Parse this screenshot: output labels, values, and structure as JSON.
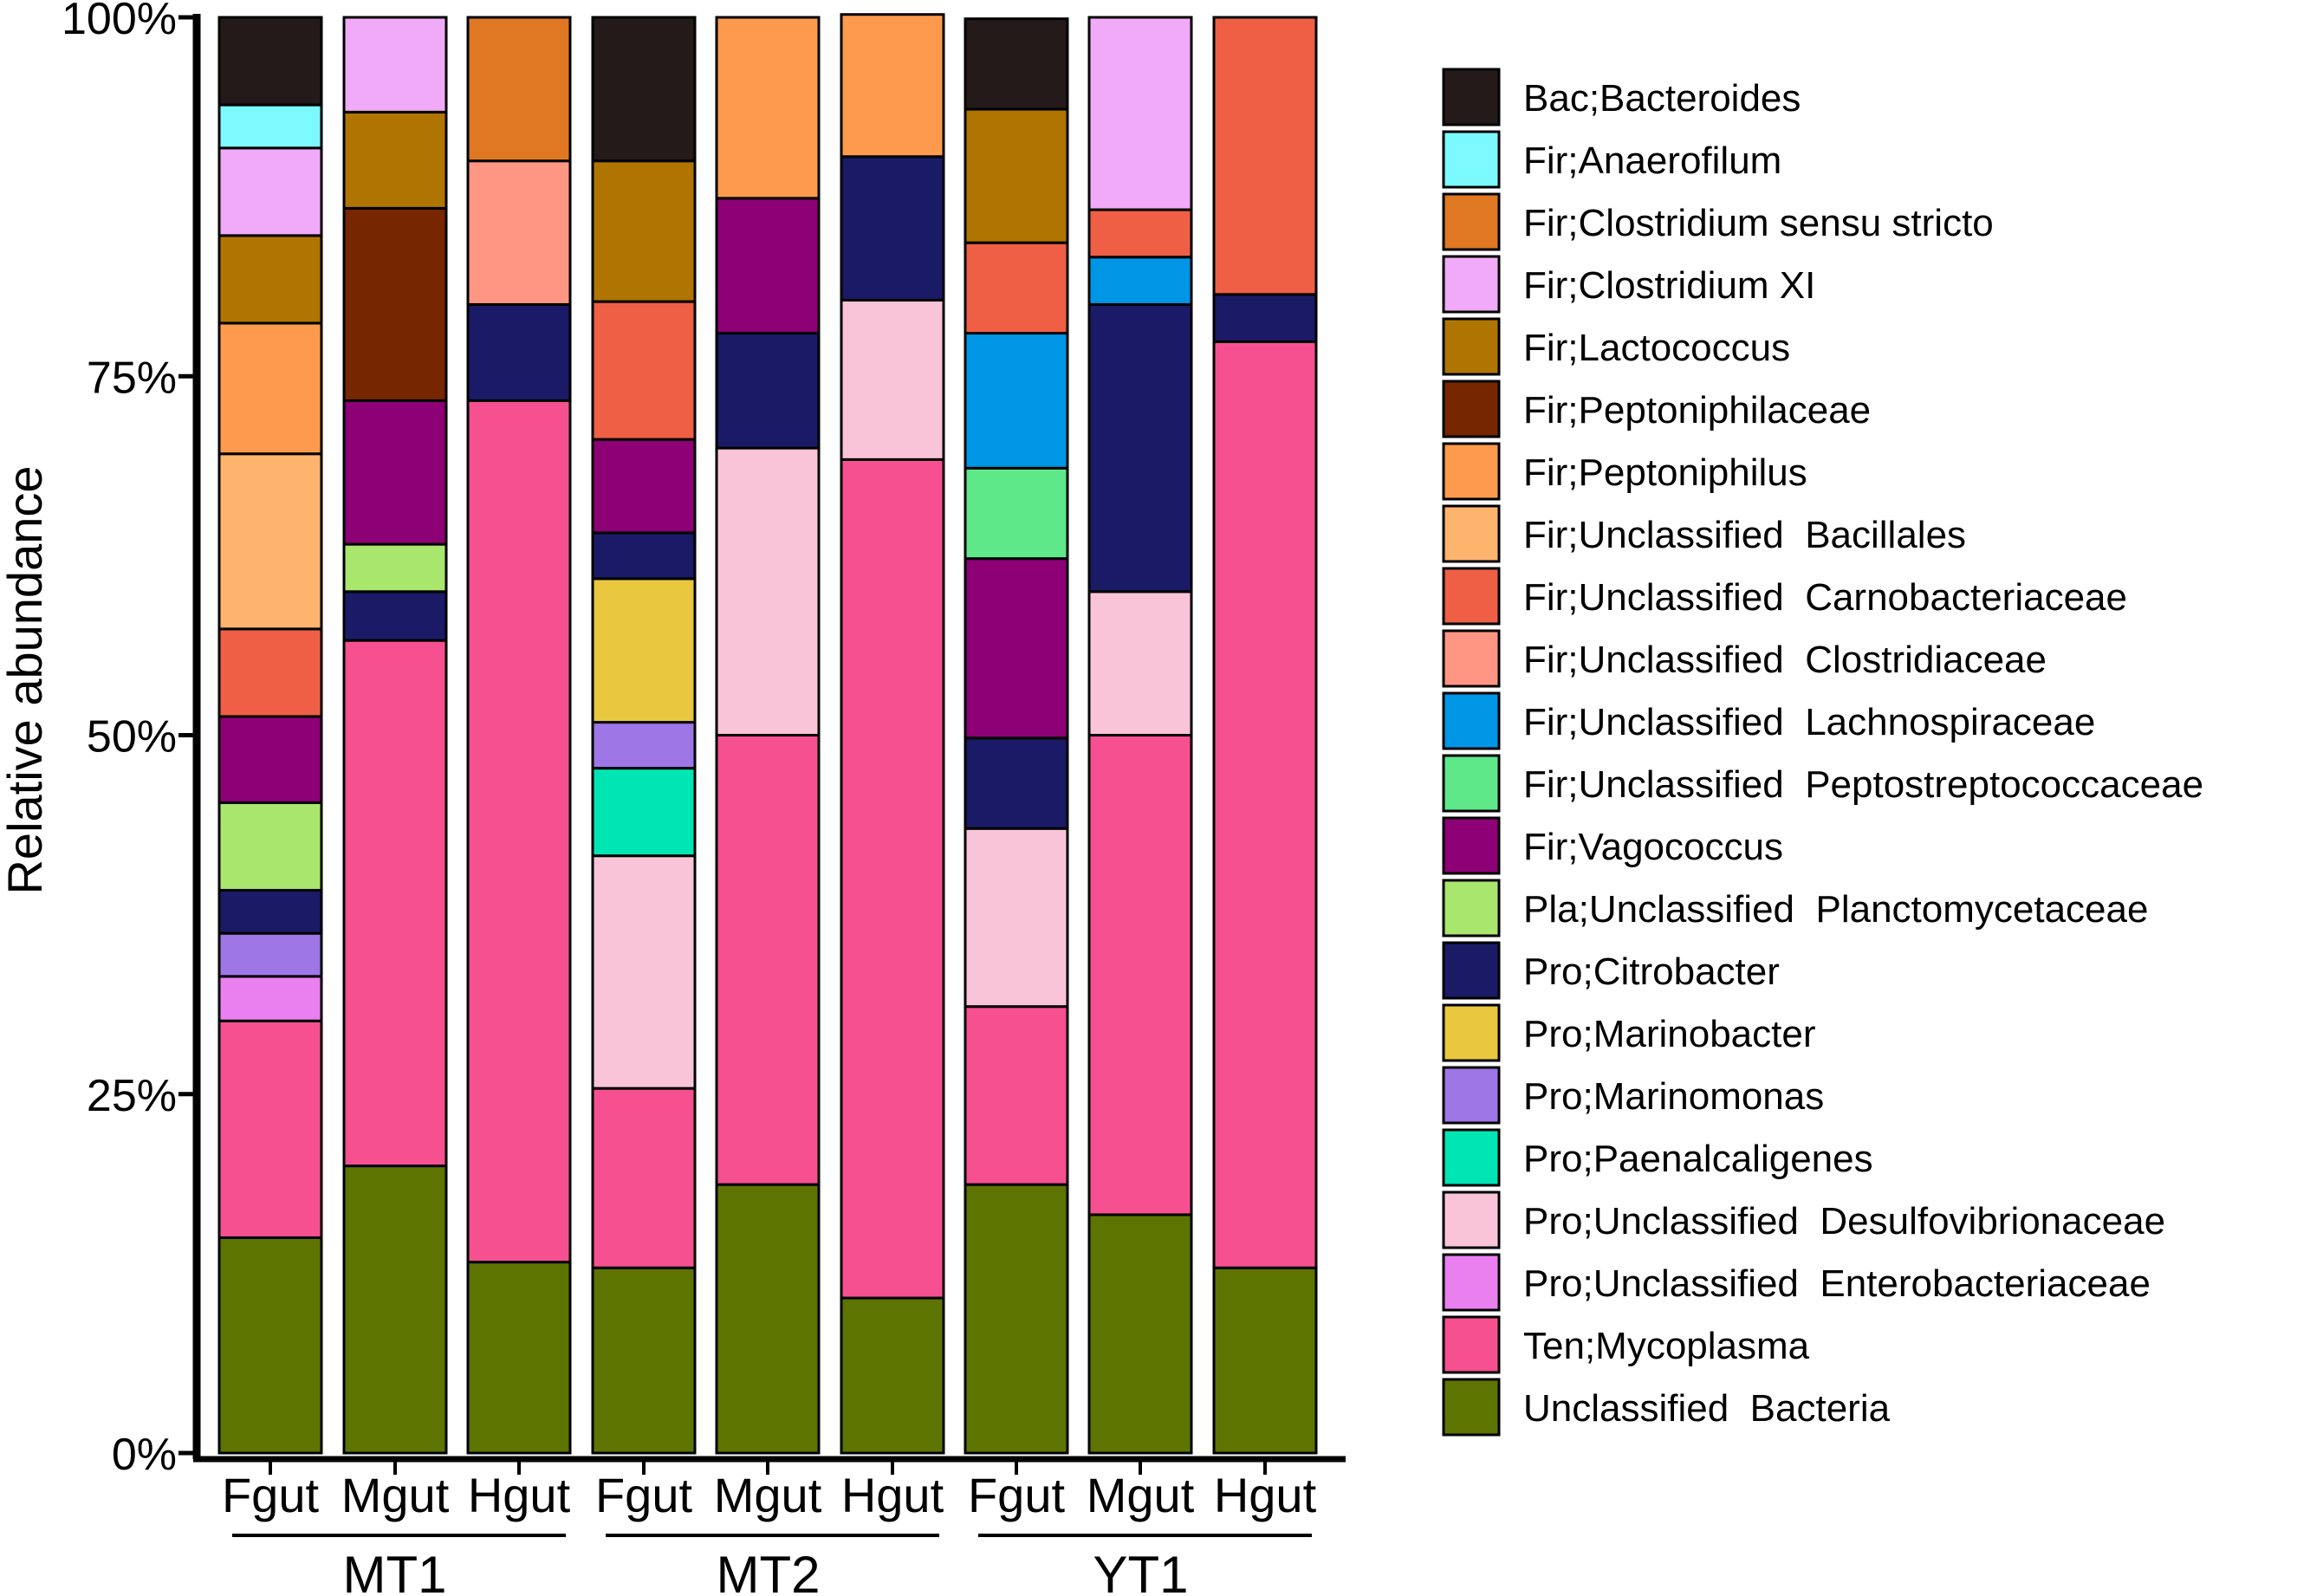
{
  "chart_data": {
    "type": "bar",
    "stacked": true,
    "ylabel": "Relative abundance",
    "ylim": [
      0,
      100
    ],
    "yticks": [
      "0%",
      "25%",
      "50%",
      "75%",
      "100%"
    ],
    "groups": [
      "MT1",
      "MT2",
      "YT1"
    ],
    "categories": [
      "Fgut",
      "Mgut",
      "Hgut",
      "Fgut",
      "Mgut",
      "Hgut",
      "Fgut",
      "Mgut",
      "Hgut"
    ],
    "series": [
      {
        "name": "Unclassified  Bacteria",
        "color": "#5e7400",
        "values": [
          15.0,
          20.0,
          13.3,
          12.9,
          18.7,
          10.8,
          18.7,
          16.6,
          12.9
        ]
      },
      {
        "name": "Ten;Mycoplasma",
        "color": "#f65091",
        "values": [
          15.1,
          36.6,
          60.0,
          12.5,
          31.3,
          58.4,
          12.4,
          33.4,
          64.5
        ]
      },
      {
        "name": "Pro;Unclassified  Enterobacteriaceae",
        "color": "#ea7ff0",
        "values": [
          3.1,
          0,
          0,
          0,
          0,
          0,
          0,
          0,
          0
        ]
      },
      {
        "name": "Pro;Unclassified  Desulfovibrionaceae",
        "color": "#fac4d8",
        "values": [
          0,
          0,
          0,
          16.2,
          20.0,
          11.1,
          12.4,
          10.0,
          0
        ]
      },
      {
        "name": "Pro;Paenalcaligenes",
        "color": "#00e5b4",
        "values": [
          0,
          0,
          0,
          6.1,
          0,
          0,
          0,
          0,
          0
        ]
      },
      {
        "name": "Pro;Marinomonas",
        "color": "#9e76e6",
        "values": [
          3.0,
          0,
          0,
          3.2,
          0,
          0,
          0,
          0,
          0
        ]
      },
      {
        "name": "Pro;Marinobacter",
        "color": "#e9c83f",
        "values": [
          0,
          0,
          0,
          10.0,
          0,
          0,
          0,
          0,
          0
        ]
      },
      {
        "name": "Pro;Citrobacter",
        "color": "#1a1a66",
        "values": [
          3.0,
          3.4,
          6.7,
          3.2,
          8.0,
          10.0,
          6.3,
          20.0,
          3.3
        ]
      },
      {
        "name": "Pla;Unclassified  Planctomycetaceae",
        "color": "#a8e66d",
        "values": [
          6.1,
          3.3,
          0,
          0,
          0,
          0,
          0,
          0,
          0
        ]
      },
      {
        "name": "Fir;Vagococcus",
        "color": "#8e0076",
        "values": [
          6.0,
          10.0,
          0,
          6.5,
          9.4,
          0,
          12.5,
          0,
          0
        ]
      },
      {
        "name": "Fir;Unclassified  Peptostreptococcaceae",
        "color": "#5ee88a",
        "values": [
          0,
          0,
          0,
          0,
          0,
          0,
          6.3,
          0,
          0
        ]
      },
      {
        "name": "Fir;Unclassified  Lachnospiraceae",
        "color": "#0096e6",
        "values": [
          0,
          0,
          0,
          0,
          0,
          0,
          9.4,
          3.3,
          0
        ]
      },
      {
        "name": "Fir;Unclassified  Clostridiaceae",
        "color": "#ff9683",
        "values": [
          0,
          0,
          10.0,
          0,
          0,
          0,
          0,
          0,
          0
        ]
      },
      {
        "name": "Fir;Unclassified  Carnobacteriaceae",
        "color": "#ee5f46",
        "values": [
          6.1,
          0,
          0,
          9.6,
          0,
          0,
          6.3,
          3.3,
          19.3
        ]
      },
      {
        "name": "Fir;Unclassified  Bacillales",
        "color": "#fdb46d",
        "values": [
          12.2,
          0,
          0,
          0,
          0,
          0,
          0,
          0,
          0
        ]
      },
      {
        "name": "Fir;Peptoniphilus",
        "color": "#fd9a4d",
        "values": [
          9.1,
          0,
          0,
          0,
          12.6,
          9.9,
          0,
          0,
          0
        ]
      },
      {
        "name": "Fir;Peptoniphilaceae",
        "color": "#762700",
        "values": [
          0,
          13.4,
          0,
          0,
          0,
          0,
          0,
          0,
          0
        ]
      },
      {
        "name": "Fir;Lactococcus",
        "color": "#b07500",
        "values": [
          6.1,
          6.7,
          0,
          9.8,
          0,
          0,
          9.3,
          0,
          0
        ]
      },
      {
        "name": "Fir;Clostridium XI",
        "color": "#f0aaf8",
        "values": [
          6.1,
          6.6,
          0,
          0,
          0,
          0,
          0,
          13.4,
          0
        ]
      },
      {
        "name": "Fir;Clostridium sensu stricto",
        "color": "#e07722",
        "values": [
          0,
          0,
          10.0,
          0,
          0,
          0,
          0,
          0,
          0
        ]
      },
      {
        "name": "Fir;Anaerofilum",
        "color": "#7cfaff",
        "values": [
          3.0,
          0,
          0,
          0,
          0,
          0,
          0,
          0,
          0
        ]
      },
      {
        "name": "Bac;Bacteroides",
        "color": "#241a1a",
        "values": [
          6.1,
          0,
          0,
          10.0,
          0,
          0,
          6.3,
          0,
          0
        ]
      }
    ],
    "legend_position": "right"
  }
}
